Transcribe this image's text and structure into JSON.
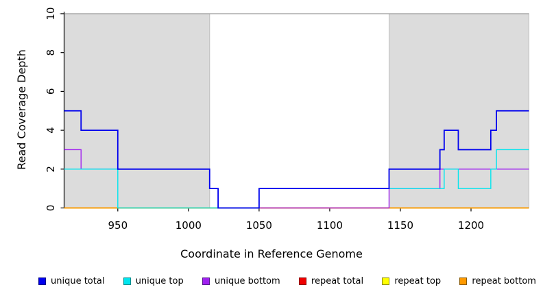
{
  "chart_data": {
    "type": "line",
    "step": "after",
    "title": "",
    "xlabel": "Coordinate in Reference Genome",
    "ylabel": "Read Coverage Depth",
    "xlim": [
      912,
      1241
    ],
    "ylim": [
      0,
      10
    ],
    "x_ticks": [
      950,
      1000,
      1050,
      1100,
      1150,
      1200
    ],
    "y_ticks": [
      0,
      2,
      4,
      6,
      8,
      10
    ],
    "grid": false,
    "legend_position": "bottom",
    "shade_color": "#DCDCDC",
    "shaded_regions": [
      [
        912,
        1015
      ],
      [
        1142,
        1241
      ]
    ],
    "top_line_y": 10,
    "series": [
      {
        "name": "unique total",
        "color": "#0000EE",
        "swatch_border": "#00008B",
        "points": [
          [
            912,
            5
          ],
          [
            924,
            4
          ],
          [
            950,
            2
          ],
          [
            1015,
            1
          ],
          [
            1021,
            0
          ],
          [
            1050,
            1
          ],
          [
            1142,
            2
          ],
          [
            1178,
            3
          ],
          [
            1181,
            4
          ],
          [
            1191,
            3
          ],
          [
            1214,
            4
          ],
          [
            1218,
            5
          ]
        ]
      },
      {
        "name": "unique top",
        "color": "#00E5EE",
        "swatch_border": "#008B8B",
        "points": [
          [
            912,
            2
          ],
          [
            950,
            0
          ],
          [
            1050,
            1
          ],
          [
            1181,
            2
          ],
          [
            1191,
            1
          ],
          [
            1214,
            2
          ],
          [
            1218,
            3
          ]
        ]
      },
      {
        "name": "unique bottom",
        "color": "#A020F0",
        "swatch_border": "#551A8B",
        "points": [
          [
            912,
            3
          ],
          [
            924,
            2
          ],
          [
            1015,
            1
          ],
          [
            1021,
            0
          ],
          [
            1142,
            1
          ],
          [
            1178,
            2
          ]
        ]
      },
      {
        "name": "repeat total",
        "color": "#EE0000",
        "swatch_border": "#8B0000",
        "points": [
          [
            912,
            0
          ]
        ]
      },
      {
        "name": "repeat top",
        "color": "#FFFF00",
        "swatch_border": "#8B8B00",
        "points": [
          [
            912,
            0
          ]
        ]
      },
      {
        "name": "repeat bottom",
        "color": "#FF9900",
        "swatch_border": "#8B5A00",
        "points": [
          [
            912,
            0
          ]
        ]
      }
    ],
    "draw_order": [
      3,
      4,
      5,
      2,
      1,
      0
    ]
  }
}
